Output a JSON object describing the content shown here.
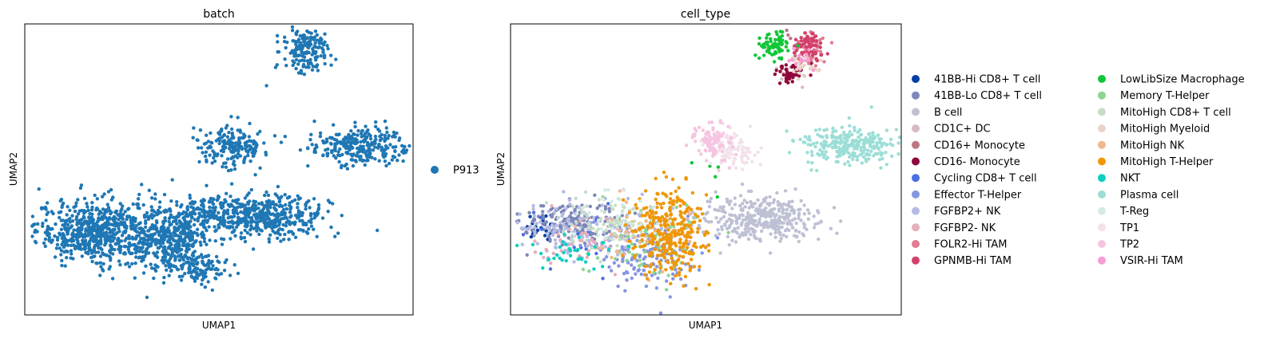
{
  "chart_data": [
    {
      "type": "scatter",
      "title": "batch",
      "xlabel": "UMAP1",
      "ylabel": "UMAP2",
      "xlim": [
        -10,
        10
      ],
      "ylim": [
        -8,
        8
      ],
      "grid": false,
      "legend_position": "right",
      "series": [
        {
          "name": "P913",
          "color": "#1f77b4",
          "clusters": [
            {
              "cx": -6.2,
              "cy": -3.4,
              "sx": 1.6,
              "sy": 0.85,
              "n": 650
            },
            {
              "cx": -2.4,
              "cy": -3.9,
              "sx": 1.0,
              "sy": 1.05,
              "n": 420
            },
            {
              "cx": -0.9,
              "cy": -5.4,
              "sx": 0.7,
              "sy": 0.45,
              "n": 80
            },
            {
              "cx": 2.4,
              "cy": -2.6,
              "sx": 1.6,
              "sy": 0.55,
              "n": 420
            },
            {
              "cx": -0.3,
              "cy": -2.3,
              "sx": 0.8,
              "sy": 0.6,
              "n": 100
            },
            {
              "cx": 0.7,
              "cy": 1.3,
              "sx": 0.85,
              "sy": 0.55,
              "n": 190
            },
            {
              "cx": 7.3,
              "cy": 1.3,
              "sx": 1.35,
              "sy": 0.55,
              "n": 280
            },
            {
              "cx": 4.5,
              "cy": 6.6,
              "sx": 0.65,
              "sy": 0.65,
              "n": 170
            }
          ]
        }
      ]
    },
    {
      "type": "scatter",
      "title": "cell_type",
      "xlabel": "UMAP1",
      "ylabel": "UMAP2",
      "xlim": [
        -10,
        10
      ],
      "ylim": [
        -8,
        8
      ],
      "grid": false,
      "legend_position": "right",
      "series": [
        {
          "name": "41BB-Hi CD8+ T cell",
          "color": "#023fa5",
          "clusters": [
            {
              "cx": -8.5,
              "cy": -3.2,
              "sx": 0.5,
              "sy": 0.4,
              "n": 22
            }
          ]
        },
        {
          "name": "41BB-Lo CD8+ T cell",
          "color": "#7d87b9",
          "clusters": [
            {
              "cx": -7.0,
              "cy": -2.9,
              "sx": 1.2,
              "sy": 0.6,
              "n": 160
            }
          ]
        },
        {
          "name": "B cell",
          "color": "#bec1d4",
          "clusters": [
            {
              "cx": 2.6,
              "cy": -2.7,
              "sx": 1.6,
              "sy": 0.6,
              "n": 380
            }
          ]
        },
        {
          "name": "CD1C+ DC",
          "color": "#d6bcc0",
          "clusters": [
            {
              "cx": 4.6,
              "cy": 5.4,
              "sx": 0.5,
              "sy": 0.3,
              "n": 18
            }
          ]
        },
        {
          "name": "CD16+ Monocyte",
          "color": "#bb7784",
          "clusters": [
            {
              "cx": 4.3,
              "cy": 6.9,
              "sx": 0.4,
              "sy": 0.4,
              "n": 8
            }
          ]
        },
        {
          "name": "CD16- Monocyte",
          "color": "#8e063b",
          "clusters": [
            {
              "cx": 4.3,
              "cy": 5.2,
              "sx": 0.4,
              "sy": 0.3,
              "n": 45
            }
          ]
        },
        {
          "name": "Cycling CD8+ T cell",
          "color": "#4a6fe3",
          "clusters": [
            {
              "cx": -5.5,
              "cy": -3.8,
              "sx": 1.8,
              "sy": 0.8,
              "n": 20
            }
          ]
        },
        {
          "name": "Effector T-Helper",
          "color": "#8595e1",
          "clusters": [
            {
              "cx": -3.2,
              "cy": -4.6,
              "sx": 1.3,
              "sy": 0.9,
              "n": 150
            }
          ]
        },
        {
          "name": "FGFBP2+ NK",
          "color": "#b5bbe3",
          "clusters": [
            {
              "cx": -6.6,
              "cy": -3.4,
              "sx": 1.7,
              "sy": 0.8,
              "n": 130
            }
          ]
        },
        {
          "name": "FGFBP2- NK",
          "color": "#e6afb9",
          "clusters": [
            {
              "cx": -6.0,
              "cy": -3.9,
              "sx": 1.4,
              "sy": 0.7,
              "n": 45
            }
          ]
        },
        {
          "name": "FOLR2-Hi TAM",
          "color": "#e07b91",
          "clusters": [
            {
              "cx": 5.4,
              "cy": 6.5,
              "sx": 0.45,
              "sy": 0.5,
              "n": 55
            }
          ]
        },
        {
          "name": "GPNMB-Hi TAM",
          "color": "#d33f6a",
          "clusters": [
            {
              "cx": 5.3,
              "cy": 6.8,
              "sx": 0.4,
              "sy": 0.35,
              "n": 65
            }
          ]
        },
        {
          "name": "LowLibSize Macrophage",
          "color": "#11c638",
          "clusters": [
            {
              "cx": 3.6,
              "cy": 6.8,
              "sx": 0.4,
              "sy": 0.4,
              "n": 75
            },
            {
              "cx": 0.0,
              "cy": -0.3,
              "sx": 0.5,
              "sy": 0.5,
              "n": 5
            }
          ]
        },
        {
          "name": "Memory T-Helper",
          "color": "#8dd593",
          "clusters": [
            {
              "cx": -3.0,
              "cy": -4.2,
              "sx": 1.5,
              "sy": 1.0,
              "n": 70
            }
          ]
        },
        {
          "name": "MitoHigh CD8+ T cell",
          "color": "#c6dec7",
          "clusters": [
            {
              "cx": -4.8,
              "cy": -3.0,
              "sx": 1.5,
              "sy": 0.8,
              "n": 90
            }
          ]
        },
        {
          "name": "MitoHigh Myeloid",
          "color": "#ead3c6",
          "clusters": [
            {
              "cx": 5.0,
              "cy": 5.7,
              "sx": 0.4,
              "sy": 0.3,
              "n": 25
            }
          ]
        },
        {
          "name": "MitoHigh NK",
          "color": "#f0b98d",
          "clusters": [
            {
              "cx": -3.3,
              "cy": -3.3,
              "sx": 1.3,
              "sy": 0.9,
              "n": 45
            }
          ]
        },
        {
          "name": "MitoHigh T-Helper",
          "color": "#ef9708",
          "clusters": [
            {
              "cx": -1.9,
              "cy": -3.5,
              "sx": 0.9,
              "sy": 1.2,
              "n": 330
            }
          ]
        },
        {
          "name": "NKT",
          "color": "#0fcfc0",
          "clusters": [
            {
              "cx": -6.9,
              "cy": -4.4,
              "sx": 1.0,
              "sy": 0.5,
              "n": 35
            }
          ]
        },
        {
          "name": "Plasma cell",
          "color": "#9cded6",
          "clusters": [
            {
              "cx": 7.5,
              "cy": 1.4,
              "sx": 1.3,
              "sy": 0.5,
              "n": 270
            }
          ]
        },
        {
          "name": "T-Reg",
          "color": "#d5eae7",
          "clusters": [
            {
              "cx": -4.6,
              "cy": -2.9,
              "sx": 1.3,
              "sy": 0.7,
              "n": 35
            }
          ]
        },
        {
          "name": "TP1",
          "color": "#f3e1eb",
          "clusters": [
            {
              "cx": 1.3,
              "cy": 1.1,
              "sx": 0.6,
              "sy": 0.5,
              "n": 90
            }
          ]
        },
        {
          "name": "TP2",
          "color": "#f6c4e1",
          "clusters": [
            {
              "cx": 0.3,
              "cy": 1.5,
              "sx": 0.5,
              "sy": 0.6,
              "n": 90
            }
          ]
        },
        {
          "name": "VSIR-Hi TAM",
          "color": "#f79cd4",
          "clusters": [
            {
              "cx": 5.0,
              "cy": 6.1,
              "sx": 0.35,
              "sy": 0.3,
              "n": 14
            }
          ]
        }
      ]
    }
  ]
}
